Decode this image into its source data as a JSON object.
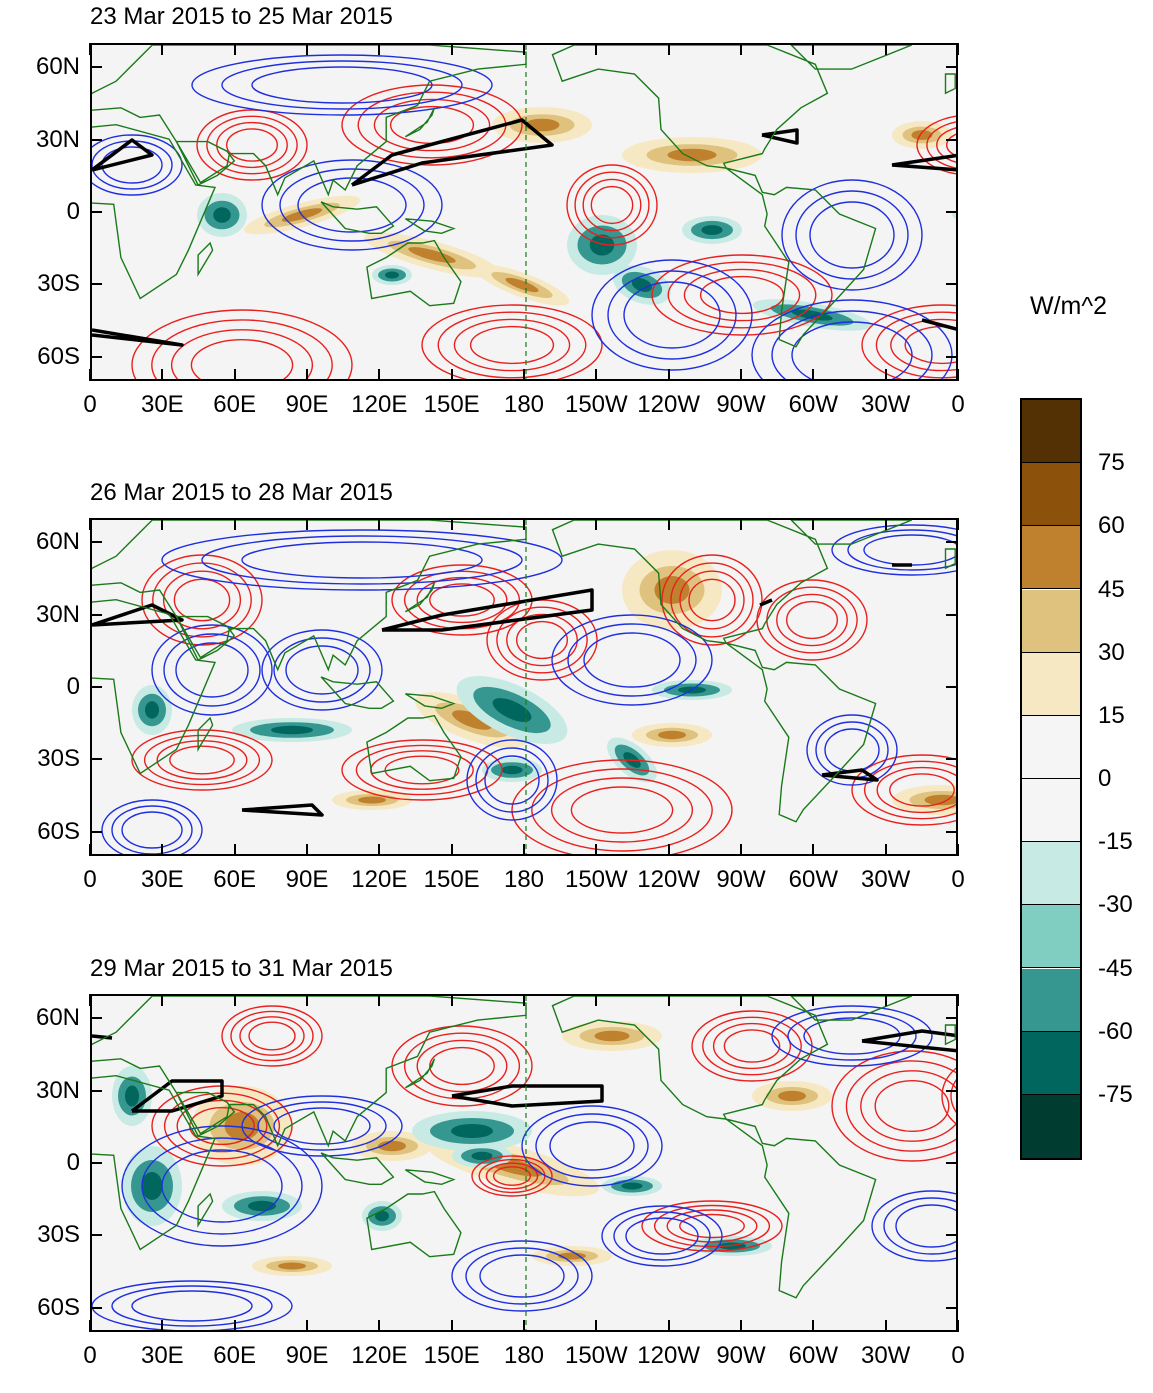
{
  "panels": [
    {
      "title": "23 Mar 2015 to 25 Mar 2015"
    },
    {
      "title": "26 Mar 2015 to 28 Mar 2015"
    },
    {
      "title": "29 Mar 2015 to 31 Mar 2015"
    }
  ],
  "lat_labels": [
    "60N",
    "30N",
    "0",
    "30S",
    "60S"
  ],
  "lon_labels": [
    "0",
    "30E",
    "60E",
    "90E",
    "120E",
    "150E",
    "180",
    "150W",
    "120W",
    "90W",
    "60W",
    "30W",
    "0"
  ],
  "colorbar": {
    "units": "W/m^2",
    "labels": [
      "75",
      "60",
      "45",
      "30",
      "15",
      "0",
      "-15",
      "-30",
      "-45",
      "-60",
      "-75"
    ],
    "colors": [
      "#543005",
      "#8c510a",
      "#bf812d",
      "#dfc27d",
      "#f6e8c3",
      "#f5f5f5",
      "#f5f5f5",
      "#c7eae5",
      "#80cdc1",
      "#35978f",
      "#01665e",
      "#003c30"
    ]
  },
  "colors": {
    "coastline": "#1a7a1a",
    "positive_contour": "#e8211e",
    "negative_contour": "#1f2fe0",
    "zero_contour": "#000000",
    "brown": "#bf812d",
    "tan": "#dfc27d",
    "light_tan": "#f6e8c3",
    "light_teal": "#c7eae5",
    "teal": "#35978f",
    "dark_teal": "#01665e"
  }
}
